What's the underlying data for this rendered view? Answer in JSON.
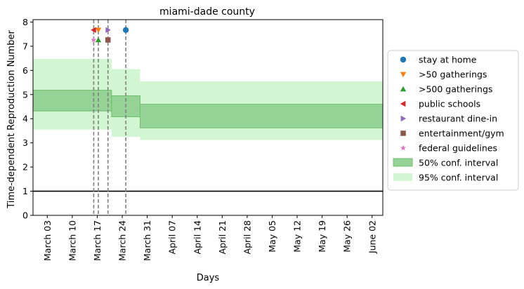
{
  "chart_data": {
    "type": "line",
    "title": "miami-dade county",
    "xlabel": "Days",
    "ylabel": "Time-dependent Reproduction Number",
    "x_domain_days": [
      -4,
      94
    ],
    "ylim": [
      0,
      8.1
    ],
    "x_ticks": [
      {
        "day": 0,
        "label": "March 03"
      },
      {
        "day": 7,
        "label": "March 10"
      },
      {
        "day": 14,
        "label": "March 17"
      },
      {
        "day": 21,
        "label": "March 24"
      },
      {
        "day": 28,
        "label": "March 31"
      },
      {
        "day": 35,
        "label": "April 07"
      },
      {
        "day": 42,
        "label": "April 14"
      },
      {
        "day": 49,
        "label": "April 21"
      },
      {
        "day": 56,
        "label": "April 28"
      },
      {
        "day": 63,
        "label": "May 05"
      },
      {
        "day": 70,
        "label": "May 12"
      },
      {
        "day": 77,
        "label": "May 19"
      },
      {
        "day": 84,
        "label": "May 26"
      },
      {
        "day": 91,
        "label": "June 02"
      }
    ],
    "y_ticks": [
      0,
      1,
      2,
      3,
      4,
      5,
      6,
      7,
      8
    ],
    "reference_line_y": 1,
    "ci50_segments": [
      {
        "start": -4,
        "end": 18,
        "low": 4.32,
        "high": 5.18
      },
      {
        "start": 18,
        "end": 26,
        "low": 4.08,
        "high": 4.95
      },
      {
        "start": 26,
        "end": 94,
        "low": 3.62,
        "high": 4.6
      }
    ],
    "ci95_segments": [
      {
        "start": -4,
        "end": 18,
        "low": 3.55,
        "high": 6.48
      },
      {
        "start": 18,
        "end": 26,
        "low": 3.25,
        "high": 6.05
      },
      {
        "start": 26,
        "end": 94,
        "low": 3.12,
        "high": 5.55
      }
    ],
    "interventions": [
      {
        "name": "stay at home",
        "day": 22,
        "y": 7.67,
        "marker": "circle",
        "color": "#1f77b4"
      },
      {
        "name": ">50 gatherings",
        "day": 14.3,
        "y": 7.67,
        "marker": "triangle-down",
        "color": "#ff7f0e"
      },
      {
        "name": ">500 gatherings",
        "day": 14.3,
        "y": 7.26,
        "marker": "triangle-up",
        "color": "#2ca02c"
      },
      {
        "name": "public schools",
        "day": 13,
        "y": 7.67,
        "marker": "triangle-left",
        "color": "#d62728"
      },
      {
        "name": "restaurant dine-in",
        "day": 17,
        "y": 7.67,
        "marker": "triangle-right",
        "color": "#9467bd"
      },
      {
        "name": "entertainment/gym",
        "day": 17,
        "y": 7.26,
        "marker": "square",
        "color": "#8c564b"
      },
      {
        "name": "federal guidelines",
        "day": 13,
        "y": 7.26,
        "marker": "star",
        "color": "#e377c2"
      }
    ],
    "vlines_days": [
      13,
      14.3,
      17,
      22
    ],
    "legend_placement": "right-outside",
    "legend_ci50": "50% conf. interval",
    "legend_ci95": "95% conf. interval",
    "colors": {
      "ci50_fill": "#95d295",
      "ci50_edge": "#6fbf6f",
      "ci95_fill": "#d2f6d2",
      "vline": "#808080",
      "refline": "#000000"
    }
  }
}
